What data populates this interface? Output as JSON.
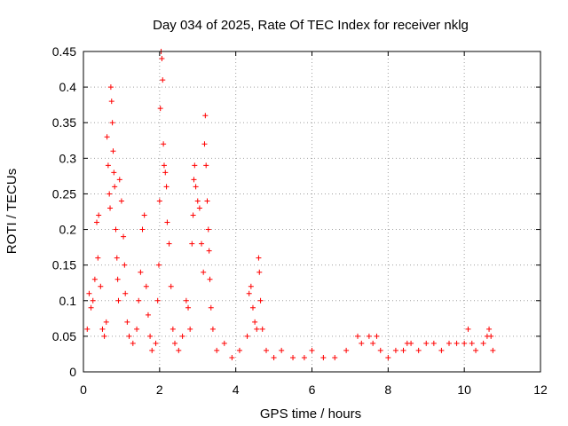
{
  "chart_data": {
    "type": "scatter",
    "title": "Day 034 of 2025, Rate Of TEC Index for receiver nklg",
    "xlabel": "GPS time / hours",
    "ylabel": "ROTI / TECUs",
    "xlim": [
      0,
      12
    ],
    "ylim": [
      0,
      0.45
    ],
    "grid": true,
    "marker": "+",
    "color": "#ff0000",
    "x_ticks": [
      "0",
      "2",
      "4",
      "6",
      "8",
      "10",
      "12"
    ],
    "y_ticks": [
      "0",
      "0.05",
      "0.1",
      "0.15",
      "0.2",
      "0.25",
      "0.3",
      "0.35",
      "0.4",
      "0.45"
    ],
    "series": [
      {
        "name": "ROTI",
        "points": [
          [
            0.1,
            0.06
          ],
          [
            0.15,
            0.11
          ],
          [
            0.2,
            0.09
          ],
          [
            0.25,
            0.1
          ],
          [
            0.3,
            0.13
          ],
          [
            0.35,
            0.21
          ],
          [
            0.38,
            0.16
          ],
          [
            0.4,
            0.22
          ],
          [
            0.45,
            0.12
          ],
          [
            0.5,
            0.06
          ],
          [
            0.55,
            0.05
          ],
          [
            0.6,
            0.07
          ],
          [
            0.62,
            0.33
          ],
          [
            0.65,
            0.29
          ],
          [
            0.68,
            0.25
          ],
          [
            0.7,
            0.23
          ],
          [
            0.72,
            0.4
          ],
          [
            0.74,
            0.38
          ],
          [
            0.76,
            0.35
          ],
          [
            0.78,
            0.31
          ],
          [
            0.8,
            0.28
          ],
          [
            0.82,
            0.26
          ],
          [
            0.85,
            0.2
          ],
          [
            0.88,
            0.16
          ],
          [
            0.9,
            0.13
          ],
          [
            0.92,
            0.1
          ],
          [
            0.95,
            0.27
          ],
          [
            1.0,
            0.24
          ],
          [
            1.05,
            0.19
          ],
          [
            1.08,
            0.15
          ],
          [
            1.1,
            0.11
          ],
          [
            1.15,
            0.07
          ],
          [
            1.2,
            0.05
          ],
          [
            1.3,
            0.04
          ],
          [
            1.4,
            0.06
          ],
          [
            1.45,
            0.1
          ],
          [
            1.5,
            0.14
          ],
          [
            1.55,
            0.2
          ],
          [
            1.6,
            0.22
          ],
          [
            1.65,
            0.12
          ],
          [
            1.7,
            0.08
          ],
          [
            1.75,
            0.05
          ],
          [
            1.8,
            0.03
          ],
          [
            1.9,
            0.04
          ],
          [
            1.95,
            0.1
          ],
          [
            1.98,
            0.15
          ],
          [
            2.0,
            0.24
          ],
          [
            2.02,
            0.37
          ],
          [
            2.04,
            0.45
          ],
          [
            2.06,
            0.44
          ],
          [
            2.08,
            0.41
          ],
          [
            2.1,
            0.32
          ],
          [
            2.12,
            0.29
          ],
          [
            2.15,
            0.28
          ],
          [
            2.18,
            0.26
          ],
          [
            2.2,
            0.21
          ],
          [
            2.25,
            0.18
          ],
          [
            2.3,
            0.12
          ],
          [
            2.35,
            0.06
          ],
          [
            2.4,
            0.04
          ],
          [
            2.5,
            0.03
          ],
          [
            2.6,
            0.05
          ],
          [
            2.7,
            0.1
          ],
          [
            2.75,
            0.09
          ],
          [
            2.8,
            0.06
          ],
          [
            2.85,
            0.18
          ],
          [
            2.88,
            0.22
          ],
          [
            2.9,
            0.27
          ],
          [
            2.92,
            0.29
          ],
          [
            2.95,
            0.26
          ],
          [
            3.0,
            0.24
          ],
          [
            3.05,
            0.23
          ],
          [
            3.1,
            0.18
          ],
          [
            3.15,
            0.14
          ],
          [
            3.18,
            0.32
          ],
          [
            3.2,
            0.36
          ],
          [
            3.22,
            0.29
          ],
          [
            3.25,
            0.24
          ],
          [
            3.28,
            0.2
          ],
          [
            3.3,
            0.17
          ],
          [
            3.32,
            0.13
          ],
          [
            3.35,
            0.09
          ],
          [
            3.4,
            0.06
          ],
          [
            3.5,
            0.03
          ],
          [
            3.7,
            0.04
          ],
          [
            3.9,
            0.02
          ],
          [
            4.1,
            0.03
          ],
          [
            4.3,
            0.05
          ],
          [
            4.35,
            0.11
          ],
          [
            4.4,
            0.12
          ],
          [
            4.45,
            0.09
          ],
          [
            4.5,
            0.07
          ],
          [
            4.55,
            0.06
          ],
          [
            4.6,
            0.16
          ],
          [
            4.62,
            0.14
          ],
          [
            4.65,
            0.1
          ],
          [
            4.7,
            0.06
          ],
          [
            4.8,
            0.03
          ],
          [
            5.0,
            0.02
          ],
          [
            5.2,
            0.03
          ],
          [
            5.5,
            0.02
          ],
          [
            5.8,
            0.02
          ],
          [
            6.0,
            0.03
          ],
          [
            6.3,
            0.02
          ],
          [
            6.6,
            0.02
          ],
          [
            6.9,
            0.03
          ],
          [
            7.2,
            0.05
          ],
          [
            7.3,
            0.04
          ],
          [
            7.5,
            0.05
          ],
          [
            7.6,
            0.04
          ],
          [
            7.7,
            0.05
          ],
          [
            7.8,
            0.03
          ],
          [
            8.0,
            0.02
          ],
          [
            8.2,
            0.03
          ],
          [
            8.4,
            0.03
          ],
          [
            8.5,
            0.04
          ],
          [
            8.6,
            0.04
          ],
          [
            8.8,
            0.03
          ],
          [
            9.0,
            0.04
          ],
          [
            9.2,
            0.04
          ],
          [
            9.4,
            0.03
          ],
          [
            9.6,
            0.04
          ],
          [
            9.8,
            0.04
          ],
          [
            10.0,
            0.04
          ],
          [
            10.1,
            0.06
          ],
          [
            10.2,
            0.04
          ],
          [
            10.3,
            0.03
          ],
          [
            10.5,
            0.04
          ],
          [
            10.6,
            0.05
          ],
          [
            10.65,
            0.06
          ],
          [
            10.7,
            0.05
          ],
          [
            10.75,
            0.03
          ]
        ]
      }
    ]
  }
}
